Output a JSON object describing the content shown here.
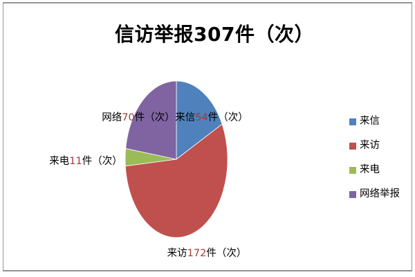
{
  "chart_data": {
    "type": "pie",
    "title": "信访举报307件（次）",
    "total": 307,
    "unit": "件（次）",
    "categories": [
      "来信",
      "来访",
      "来电",
      "网络举报"
    ],
    "values": [
      54,
      172,
      11,
      70
    ],
    "colors": [
      "#4F81BD",
      "#C0504D",
      "#9BBB59",
      "#8064A2"
    ],
    "label_number_color": "#9E3B38",
    "legend_position": "right",
    "legend_labels": [
      "来信",
      "来访",
      "来电",
      "网络举报"
    ],
    "slice_labels": [
      {
        "prefix": "来信",
        "number": "54",
        "suffix": "件（次）",
        "full": "来信54件（次）"
      },
      {
        "prefix": "来访",
        "number": "172",
        "suffix": "件（次）",
        "full": "来访172件（次）"
      },
      {
        "prefix": "来电",
        "number": "11",
        "suffix": "件（次）",
        "full": "来电11件（次）"
      },
      {
        "prefix": "网络",
        "number": "70",
        "suffix": "件（次）",
        "full": "网络70件（次）"
      }
    ],
    "start_angle_deg": 0,
    "direction": "clockwise"
  }
}
